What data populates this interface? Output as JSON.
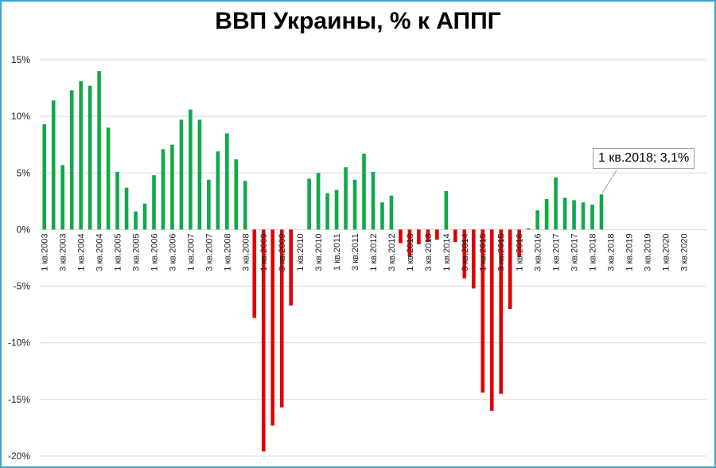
{
  "chart_data": {
    "type": "bar",
    "title": "ВВП Украины, % к АППГ",
    "xlabel": "",
    "ylabel": "",
    "ylim": [
      -20,
      15
    ],
    "yticks": [
      "15%",
      "10%",
      "5%",
      "0%",
      "-5%",
      "-10%",
      "-15%",
      "-20%"
    ],
    "ytick_values": [
      15,
      10,
      5,
      0,
      -5,
      -10,
      -15,
      -20
    ],
    "grid": true,
    "legend": "none",
    "colors": {
      "positive": "#12a84a",
      "negative": "#e00000"
    },
    "x_labels": [
      "1 кв.2003",
      "3 кв.2003",
      "1 кв.2004",
      "3 кв.2004",
      "1 кв.2005",
      "3 кв.2005",
      "1 кв.2006",
      "3 кв.2006",
      "1 кв.2007",
      "3 кв.2007",
      "1 кв.2008",
      "3 кв.2008",
      "1 кв.2009",
      "3 кв.2009",
      "1 кв.2010",
      "3 кв.2010",
      "1 кв.2011",
      "3 кв.2011",
      "1 кв.2012",
      "3 кв.2012",
      "1 кв.2013",
      "3 кв.2013",
      "1 кв.2014",
      "3 кв.2014",
      "1 кв.2015",
      "3 кв.2015",
      "1 кв.2016",
      "3 кв.2016",
      "1 кв.2017",
      "3 кв.2017",
      "1 кв.2018",
      "3 кв.2018",
      "1 кв.2019",
      "3 кв.2019",
      "1 кв.2020",
      "3 кв.2020"
    ],
    "values": [
      9.3,
      11.4,
      5.7,
      12.3,
      13.1,
      12.7,
      14.0,
      9.0,
      5.1,
      3.7,
      1.6,
      2.3,
      4.8,
      7.1,
      7.5,
      9.7,
      10.6,
      9.7,
      4.4,
      6.9,
      8.5,
      6.2,
      4.3,
      -7.8,
      -19.6,
      -17.3,
      -15.7,
      -6.7,
      null,
      4.5,
      5.0,
      3.2,
      3.5,
      5.5,
      4.4,
      6.7,
      5.1,
      2.4,
      3.0,
      -1.2,
      -2.4,
      -1.3,
      -1.1,
      -0.9,
      3.4,
      -1.1,
      -4.3,
      -5.2,
      -14.4,
      -16.0,
      -14.5,
      -7.0,
      -2.4,
      0.1,
      1.7,
      2.7,
      4.6,
      2.8,
      2.6,
      2.4,
      2.2,
      3.1,
      null,
      null,
      null,
      null,
      null,
      null,
      null,
      null,
      null,
      null,
      null
    ],
    "annotation": {
      "text": "1 кв.2018; 3,1%",
      "index": 61
    }
  }
}
